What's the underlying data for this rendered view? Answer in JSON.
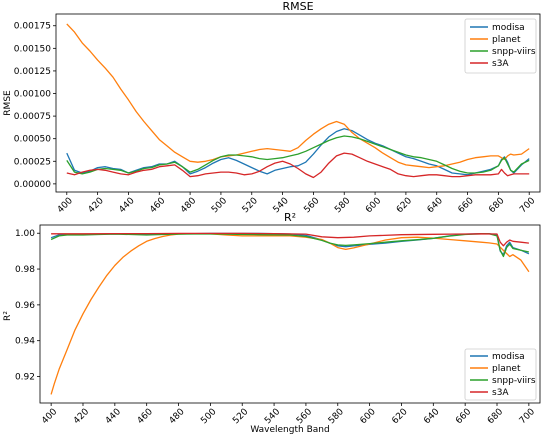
{
  "chart_data": [
    {
      "type": "line",
      "title": "RMSE",
      "xlabel": "",
      "ylabel": "RMSE",
      "xlim": [
        393,
        707
      ],
      "ylim": [
        -9e-05,
        0.00188
      ],
      "xticks": [
        "400",
        "420",
        "440",
        "460",
        "480",
        "500",
        "520",
        "540",
        "560",
        "580",
        "600",
        "620",
        "640",
        "660",
        "680",
        "700"
      ],
      "yticks": [
        "0.00000",
        "0.00025",
        "0.00050",
        "0.00075",
        "0.00100",
        "0.00125",
        "0.00150",
        "0.00175"
      ],
      "ytick_values": [
        0,
        0.00025,
        0.0005,
        0.00075,
        0.001,
        0.00125,
        0.0015,
        0.00175
      ],
      "legend_position": "upper right",
      "grid": false,
      "series": [
        {
          "name": "modisa",
          "color": "#1f77b4",
          "x": [
            400,
            405,
            410,
            415,
            420,
            425,
            430,
            435,
            440,
            445,
            450,
            455,
            460,
            465,
            470,
            475,
            480,
            485,
            490,
            495,
            500,
            505,
            510,
            515,
            520,
            525,
            530,
            535,
            540,
            545,
            550,
            555,
            560,
            565,
            570,
            575,
            580,
            585,
            590,
            595,
            600,
            605,
            610,
            615,
            620,
            625,
            630,
            635,
            640,
            645,
            650,
            655,
            660,
            665,
            670,
            675,
            680,
            682,
            684,
            686,
            688,
            690,
            695,
            700
          ],
          "y": [
            0.00034,
            0.00015,
            0.00012,
            0.00014,
            0.00018,
            0.00019,
            0.00017,
            0.00016,
            0.00012,
            0.00015,
            0.00018,
            0.00019,
            0.00022,
            0.00022,
            0.00025,
            0.00019,
            0.00011,
            0.00014,
            0.00018,
            0.00023,
            0.00027,
            0.00029,
            0.00026,
            0.00022,
            0.00018,
            0.00014,
            0.00011,
            0.00015,
            0.00017,
            0.00019,
            0.0002,
            0.00024,
            0.00033,
            0.00043,
            0.00052,
            0.00058,
            0.00061,
            0.00059,
            0.00054,
            0.00049,
            0.00045,
            0.00042,
            0.00038,
            0.00034,
            0.0003,
            0.00028,
            0.00025,
            0.00022,
            0.0002,
            0.00016,
            0.00012,
            0.00011,
            0.0001,
            0.00012,
            0.00014,
            0.00016,
            0.0002,
            0.00027,
            0.0003,
            0.00024,
            0.00015,
            0.00012,
            0.00021,
            0.00028
          ]
        },
        {
          "name": "planet",
          "color": "#ff7f0e",
          "x": [
            400,
            405,
            410,
            415,
            420,
            425,
            430,
            435,
            440,
            445,
            450,
            455,
            460,
            465,
            470,
            475,
            480,
            485,
            490,
            495,
            500,
            505,
            510,
            515,
            520,
            525,
            530,
            535,
            540,
            545,
            550,
            555,
            560,
            565,
            570,
            575,
            580,
            585,
            590,
            595,
            600,
            605,
            610,
            615,
            620,
            625,
            630,
            635,
            640,
            645,
            650,
            655,
            660,
            665,
            670,
            675,
            680,
            682,
            684,
            686,
            688,
            690,
            695,
            700
          ],
          "y": [
            0.00177,
            0.00168,
            0.00156,
            0.00147,
            0.00137,
            0.00128,
            0.00118,
            0.00105,
            0.00093,
            0.0008,
            0.00069,
            0.00059,
            0.00049,
            0.00042,
            0.00035,
            0.0003,
            0.00025,
            0.00024,
            0.00025,
            0.00027,
            0.0003,
            0.00031,
            0.00032,
            0.00034,
            0.00036,
            0.00038,
            0.00039,
            0.00038,
            0.00037,
            0.00036,
            0.0004,
            0.00048,
            0.00055,
            0.00061,
            0.00066,
            0.00069,
            0.00066,
            0.00057,
            0.0005,
            0.00045,
            0.0004,
            0.00034,
            0.00029,
            0.00024,
            0.00021,
            0.0002,
            0.00019,
            0.00018,
            0.00019,
            0.0002,
            0.00022,
            0.00024,
            0.00027,
            0.00029,
            0.0003,
            0.00031,
            0.00031,
            0.00029,
            0.00027,
            0.00031,
            0.00033,
            0.00032,
            0.00033,
            0.00039
          ]
        },
        {
          "name": "snpp-viirs",
          "color": "#2ca02c",
          "x": [
            400,
            405,
            410,
            415,
            420,
            425,
            430,
            435,
            440,
            445,
            450,
            455,
            460,
            465,
            470,
            475,
            480,
            485,
            490,
            495,
            500,
            505,
            510,
            515,
            520,
            525,
            530,
            535,
            540,
            545,
            550,
            555,
            560,
            565,
            570,
            575,
            580,
            585,
            590,
            595,
            600,
            605,
            610,
            615,
            620,
            625,
            630,
            635,
            640,
            645,
            650,
            655,
            660,
            665,
            670,
            675,
            680,
            682,
            684,
            686,
            688,
            690,
            695,
            700
          ],
          "y": [
            0.00026,
            0.00013,
            0.00011,
            0.00013,
            0.00016,
            0.00017,
            0.00016,
            0.00015,
            0.00012,
            0.00014,
            0.00017,
            0.00018,
            0.00021,
            0.00022,
            0.00024,
            0.00019,
            0.00013,
            0.00016,
            0.00021,
            0.00026,
            0.0003,
            0.00032,
            0.00032,
            0.00031,
            0.0003,
            0.00028,
            0.00027,
            0.00028,
            0.00029,
            0.00031,
            0.00033,
            0.00036,
            0.0004,
            0.00044,
            0.00048,
            0.00051,
            0.00053,
            0.00052,
            0.0005,
            0.00047,
            0.00044,
            0.00041,
            0.00038,
            0.00035,
            0.00032,
            0.0003,
            0.00029,
            0.00027,
            0.00025,
            0.00021,
            0.00017,
            0.00014,
            0.00012,
            0.00012,
            0.00013,
            0.00015,
            0.0002,
            0.00026,
            0.00029,
            0.00022,
            0.00015,
            0.00013,
            0.00022,
            0.00026
          ]
        },
        {
          "name": "s3A",
          "color": "#d62728",
          "x": [
            400,
            405,
            410,
            415,
            420,
            425,
            430,
            435,
            440,
            445,
            450,
            455,
            460,
            465,
            470,
            475,
            480,
            485,
            490,
            495,
            500,
            505,
            510,
            515,
            520,
            525,
            530,
            535,
            540,
            545,
            550,
            555,
            560,
            565,
            570,
            575,
            580,
            585,
            590,
            595,
            600,
            605,
            610,
            615,
            620,
            625,
            630,
            635,
            640,
            645,
            650,
            655,
            660,
            665,
            670,
            675,
            680,
            682,
            684,
            686,
            688,
            690,
            695,
            700
          ],
          "y": [
            0.00012,
            0.0001,
            0.00013,
            0.00015,
            0.00016,
            0.00015,
            0.00013,
            0.00011,
            0.0001,
            0.00013,
            0.00015,
            0.00016,
            0.00019,
            0.0002,
            0.00021,
            0.00015,
            8e-05,
            9e-05,
            0.00011,
            0.00012,
            0.00013,
            0.00013,
            0.00012,
            0.0001,
            0.00011,
            0.00014,
            0.00019,
            0.00023,
            0.00025,
            0.00022,
            0.00017,
            0.00011,
            7e-05,
            0.00013,
            0.00023,
            0.00031,
            0.00034,
            0.00033,
            0.00029,
            0.00025,
            0.00022,
            0.00019,
            0.00016,
            0.00011,
            9e-05,
            8e-05,
            9e-05,
            0.0001,
            0.0001,
            9e-05,
            8e-05,
            8e-05,
            9e-05,
            0.0001,
            0.0001,
            0.0001,
            0.00011,
            0.00016,
            0.00012,
            9e-05,
            0.0001,
            0.00011,
            0.00011,
            0.00011
          ]
        }
      ]
    },
    {
      "type": "line",
      "title": "R²",
      "xlabel": "Wavelength Band",
      "ylabel": "R²",
      "xlim": [
        393,
        707
      ],
      "ylim": [
        0.9052,
        1.0046
      ],
      "xticks": [
        "400",
        "420",
        "440",
        "460",
        "480",
        "500",
        "520",
        "540",
        "560",
        "580",
        "600",
        "620",
        "640",
        "660",
        "680",
        "700"
      ],
      "yticks": [
        "0.92",
        "0.94",
        "0.96",
        "0.98",
        "1.00"
      ],
      "ytick_values": [
        0.92,
        0.94,
        0.96,
        0.98,
        1.0
      ],
      "legend_position": "lower right",
      "grid": false,
      "series": [
        {
          "name": "modisa",
          "color": "#1f77b4",
          "x": [
            400,
            405,
            410,
            415,
            420,
            430,
            440,
            450,
            460,
            470,
            480,
            490,
            500,
            510,
            520,
            530,
            540,
            550,
            560,
            570,
            575,
            580,
            585,
            590,
            600,
            610,
            620,
            630,
            640,
            650,
            660,
            670,
            675,
            680,
            682,
            684,
            686,
            688,
            690,
            695,
            700
          ],
          "y": [
            0.9975,
            0.9991,
            0.9994,
            0.9995,
            0.9993,
            0.9995,
            0.9997,
            0.9995,
            0.9993,
            0.9995,
            0.9997,
            0.9998,
            0.9999,
            0.9999,
            0.9999,
            0.9999,
            0.9998,
            0.9996,
            0.9988,
            0.9963,
            0.9945,
            0.993,
            0.9925,
            0.993,
            0.9938,
            0.9945,
            0.9955,
            0.9962,
            0.9972,
            0.9985,
            0.9995,
            0.9998,
            0.9998,
            0.999,
            0.99,
            0.988,
            0.993,
            0.995,
            0.992,
            0.9905,
            0.9885
          ]
        },
        {
          "name": "planet",
          "color": "#ff7f0e",
          "x": [
            400,
            402,
            405,
            410,
            415,
            420,
            425,
            430,
            435,
            440,
            445,
            450,
            455,
            460,
            465,
            470,
            475,
            480,
            490,
            500,
            510,
            520,
            530,
            540,
            550,
            560,
            570,
            575,
            580,
            585,
            590,
            600,
            610,
            620,
            630,
            640,
            650,
            660,
            670,
            675,
            680,
            685,
            688,
            690,
            695,
            700
          ],
          "y": [
            0.91,
            0.916,
            0.924,
            0.935,
            0.946,
            0.955,
            0.963,
            0.97,
            0.9765,
            0.982,
            0.9865,
            0.99,
            0.993,
            0.9955,
            0.997,
            0.9982,
            0.999,
            0.9995,
            0.9998,
            0.9997,
            0.999,
            0.9985,
            0.9985,
            0.9986,
            0.9985,
            0.9978,
            0.9965,
            0.9945,
            0.992,
            0.991,
            0.9918,
            0.994,
            0.9962,
            0.9975,
            0.9978,
            0.9973,
            0.9965,
            0.9958,
            0.995,
            0.9946,
            0.994,
            0.9895,
            0.987,
            0.988,
            0.985,
            0.9785
          ]
        },
        {
          "name": "snpp-viirs",
          "color": "#2ca02c",
          "x": [
            400,
            405,
            410,
            415,
            420,
            430,
            440,
            450,
            460,
            470,
            480,
            490,
            500,
            510,
            520,
            530,
            540,
            550,
            560,
            570,
            575,
            580,
            585,
            590,
            600,
            610,
            620,
            630,
            640,
            650,
            660,
            670,
            675,
            680,
            682,
            684,
            686,
            688,
            690,
            695,
            700
          ],
          "y": [
            0.9965,
            0.9985,
            0.999,
            0.9991,
            0.999,
            0.9993,
            0.9995,
            0.9993,
            0.999,
            0.9993,
            0.9995,
            0.9996,
            0.9997,
            0.9995,
            0.9993,
            0.9992,
            0.9991,
            0.999,
            0.9982,
            0.996,
            0.9945,
            0.9935,
            0.9932,
            0.9935,
            0.9942,
            0.995,
            0.9958,
            0.9964,
            0.9972,
            0.9984,
            0.9993,
            0.9997,
            0.9997,
            0.9985,
            0.9905,
            0.987,
            0.992,
            0.994,
            0.9915,
            0.9905,
            0.9895
          ]
        },
        {
          "name": "s3A",
          "color": "#d62728",
          "x": [
            400,
            420,
            440,
            460,
            480,
            500,
            520,
            540,
            560,
            570,
            580,
            590,
            600,
            620,
            640,
            660,
            670,
            680,
            682,
            684,
            686,
            688,
            690,
            695,
            700
          ],
          "y": [
            0.9997,
            0.9997,
            0.9998,
            0.9998,
            0.9999,
            0.9999,
            0.9999,
            0.9998,
            0.9995,
            0.998,
            0.9975,
            0.9978,
            0.9985,
            0.9992,
            0.9994,
            0.9996,
            0.9997,
            0.9996,
            0.995,
            0.993,
            0.995,
            0.9962,
            0.9955,
            0.995,
            0.9945
          ]
        }
      ]
    }
  ]
}
